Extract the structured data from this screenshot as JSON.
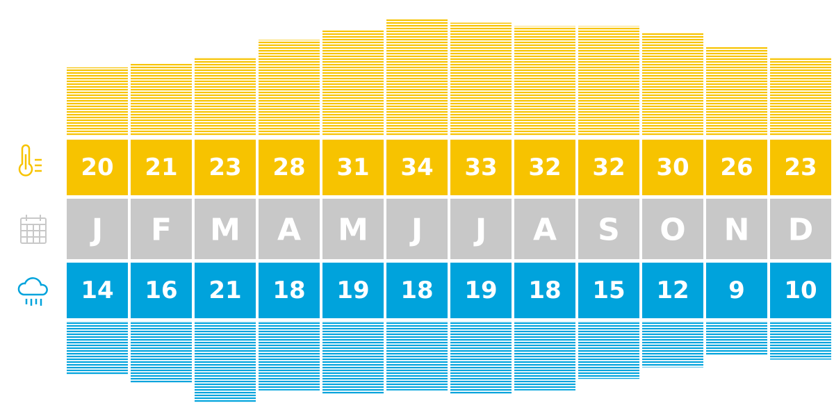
{
  "chart_data": {
    "type": "climate-strip",
    "categories": [
      "J",
      "F",
      "M",
      "A",
      "M",
      "J",
      "J",
      "A",
      "S",
      "O",
      "N",
      "D"
    ],
    "category_color": "#c8c8c8",
    "series": [
      {
        "color": "#f7c300",
        "values": [
          20,
          21,
          23,
          28,
          31,
          34,
          33,
          32,
          32,
          30,
          26,
          23
        ]
      },
      {
        "color": "#00a3dc",
        "values": [
          14,
          16,
          21,
          18,
          19,
          18,
          19,
          18,
          15,
          12,
          9,
          10
        ]
      }
    ]
  }
}
